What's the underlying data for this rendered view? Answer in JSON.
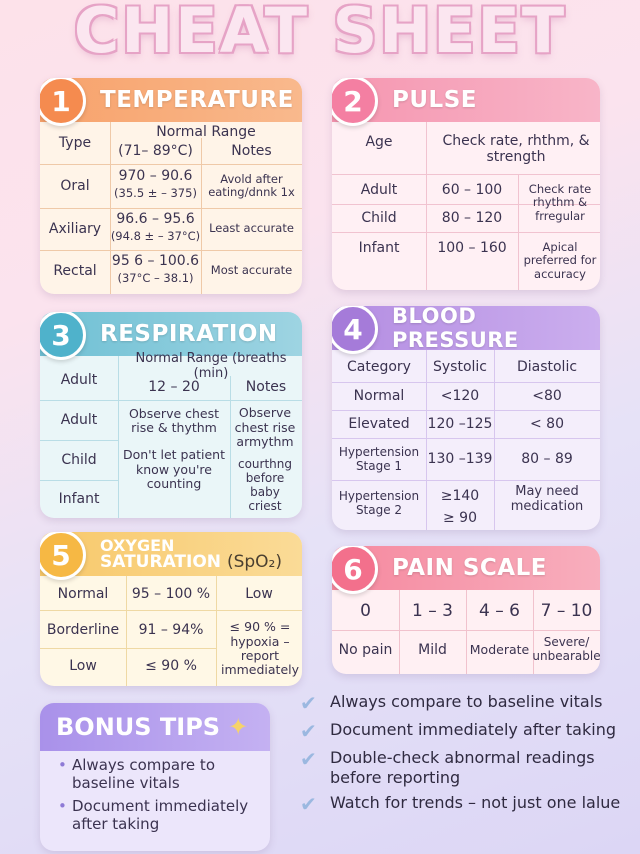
{
  "title": "CHEAT SHEET",
  "temperature": {
    "num": "1",
    "title": "TEMPERATURE",
    "headers": {
      "type": "Type",
      "range": "Normal Range",
      "range_sub": "(71– 89°C)",
      "notes": "Notes"
    },
    "rows": [
      {
        "type": "Oral",
        "range": "970 – 90.6",
        "range_sub": "(35.5 ± – 375)",
        "notes": "Avold after eating/dnnk 1x"
      },
      {
        "type": "Axiliary",
        "range": "96.6 – 95.6",
        "range_sub": "(94.8 ± – 37°C)",
        "notes": "Least accurate"
      },
      {
        "type": "Rectal",
        "range": "95 6 – 100.6",
        "range_sub": "(37°C – 38.1)",
        "notes": "Most accurate"
      }
    ]
  },
  "pulse": {
    "num": "2",
    "title": "PULSE",
    "headers": {
      "age": "Age",
      "check": "Check rate, rhthm, & strength"
    },
    "rows": [
      {
        "age": "Adult",
        "rate": "60 – 100",
        "notes": "Check rate rhythm & frregular"
      },
      {
        "age": "Child",
        "rate": "80 – 120",
        "notes": ""
      },
      {
        "age": "Infant",
        "rate": "100 – 160",
        "notes": "Apical preferred for accuracy"
      }
    ]
  },
  "respiration": {
    "num": "3",
    "title": "RESPIRATION",
    "headers": {
      "adult": "Adult",
      "range": "Normal Range (breaths (min)",
      "range_value": "12 – 20",
      "notes": "Notes"
    },
    "rows": [
      {
        "age": "Adult",
        "range": "Observe chest rise & thythm",
        "notes": "Observe chest rise armythm"
      },
      {
        "age": "Child",
        "range": "Don't let patient know you're counting",
        "notes": "courthng before baby criest"
      },
      {
        "age": "Infant",
        "range": "",
        "notes": ""
      }
    ]
  },
  "blood_pressure": {
    "num": "4",
    "title": "BLOOD PRESSURE",
    "headers": {
      "category": "Category",
      "systolic": "Systolic",
      "diastolic": "Diastolic"
    },
    "rows": [
      {
        "category": "Normal",
        "systolic": "<120",
        "diastolic": "<80"
      },
      {
        "category": "Elevated",
        "systolic": "120 –125",
        "diastolic": "< 80"
      },
      {
        "category": "Hypertension Stage 1",
        "systolic": "130 –139",
        "diastolic": "80 – 89"
      },
      {
        "category": "Hypertension Stage 2",
        "systolic": "≥140",
        "systolic2": "≥ 90",
        "diastolic": "May need medication"
      }
    ]
  },
  "oxygen": {
    "num": "5",
    "title_line1": "OXYGEN",
    "title_line2": "SATURATION",
    "title_suffix": "(SpO₂)",
    "rows": [
      {
        "label": "Normal",
        "range": "95 – 100 %",
        "note": "Low"
      },
      {
        "label": "Borderline",
        "range": "91 – 94%",
        "note": "≤ 90 % = hypoxia – report immediately"
      },
      {
        "label": "Low",
        "range": "≤ 90 %",
        "note": ""
      }
    ]
  },
  "pain": {
    "num": "6",
    "title": "PAIN SCALE",
    "scale": [
      "0",
      "1 – 3",
      "4 – 6",
      "7 – 10"
    ],
    "labels": [
      "No pain",
      "Mild",
      "Moderate",
      "Severe/ unbearable"
    ]
  },
  "bonus": {
    "title": "BONUS TIPS",
    "items": [
      "Always compare to baseline vitals",
      "Document immediately after taking"
    ]
  },
  "tips": [
    "Always compare to baseline vitals",
    "Document immediately after taking",
    "Double-check abnormal readings before reporting",
    "Watch for trends – not just one lalue"
  ]
}
